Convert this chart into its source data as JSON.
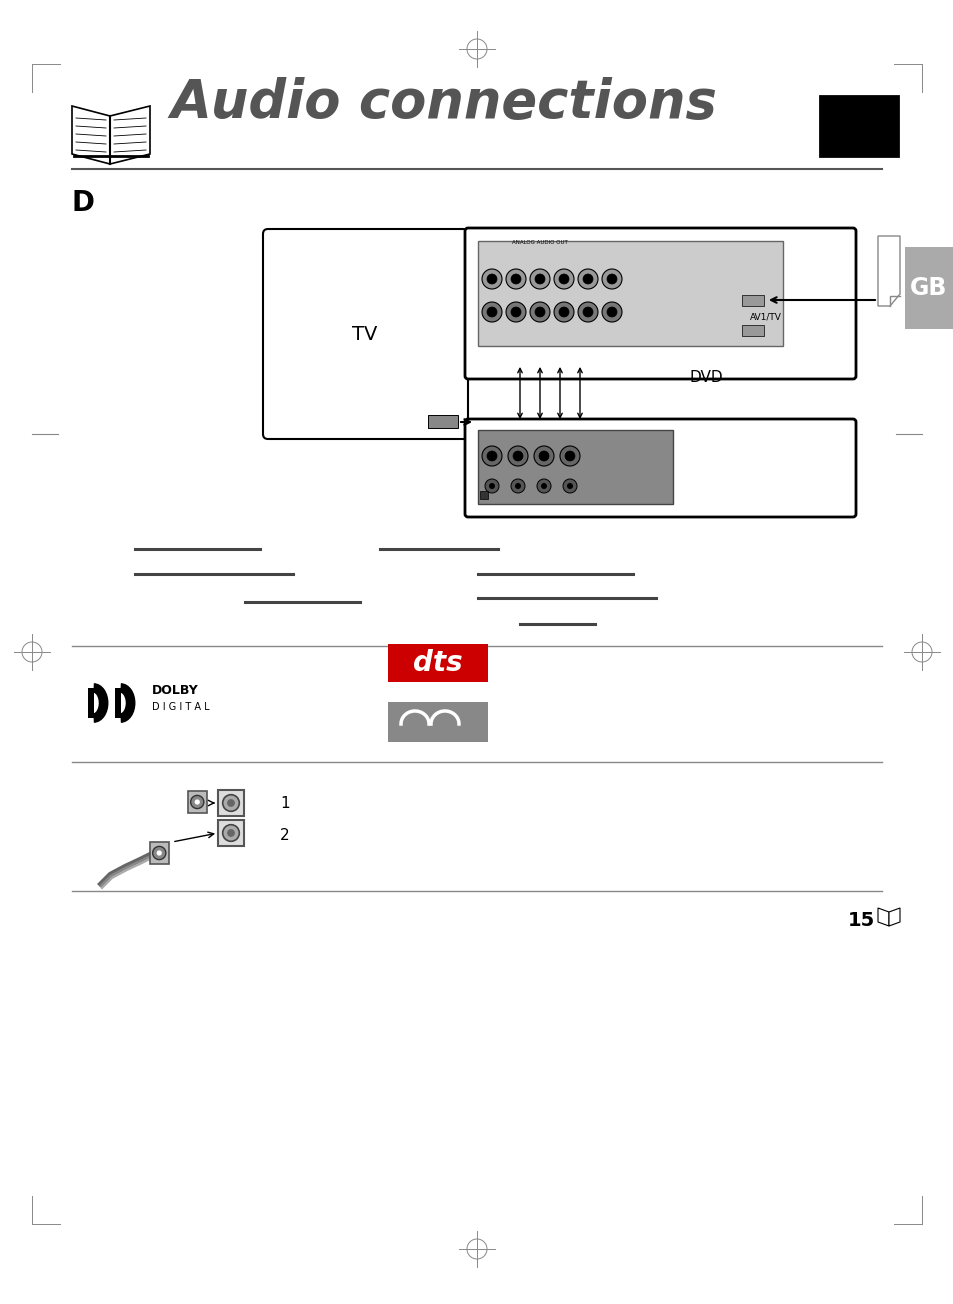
{
  "title": "Audio connections",
  "page_bg": "#ffffff",
  "section_d_label": "D",
  "section_gb_label": "GB",
  "tv_label": "TV",
  "dvd_label": "DVD",
  "av1tv_label": "AV1/TV",
  "dolby_text1": "DOLBY",
  "dolby_text2": "D I G I T A L",
  "page_number": "15",
  "line_color": "#888888",
  "dark_color": "#333333",
  "gray_color": "#999999",
  "connector_color": "#555555",
  "gb_bg_color": "#aaaaaa",
  "dts_red": "#cc0000",
  "dts_text": "dts",
  "thx_bg": "#888888"
}
